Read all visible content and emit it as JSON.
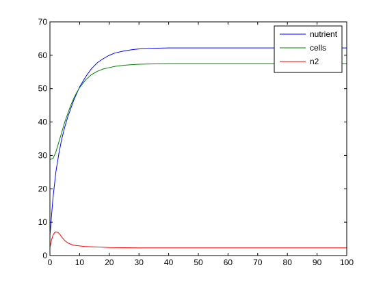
{
  "chart_data": {
    "type": "line",
    "title": "",
    "xlabel": "",
    "ylabel": "",
    "xlim": [
      0,
      100
    ],
    "ylim": [
      0,
      70
    ],
    "grid": false,
    "legend_position": "top-right",
    "x_ticks": [
      "0",
      "10",
      "20",
      "30",
      "40",
      "50",
      "60",
      "70",
      "80",
      "90",
      "100"
    ],
    "y_ticks": [
      "0",
      "10",
      "20",
      "30",
      "40",
      "50",
      "60",
      "70"
    ],
    "series": [
      {
        "name": "nutrient",
        "color": "#0000ff",
        "x": [
          0,
          1,
          2,
          3,
          4,
          5,
          6,
          7,
          8,
          9,
          10,
          12,
          14,
          16,
          18,
          20,
          22,
          25,
          28,
          30,
          35,
          40,
          45,
          50,
          60,
          70,
          80,
          90,
          100
        ],
        "y": [
          6,
          17,
          25,
          30.5,
          35,
          38.5,
          41.5,
          44,
          46.5,
          48.5,
          50.5,
          53.5,
          56,
          57.8,
          59,
          60,
          60.7,
          61.3,
          61.7,
          61.9,
          62.1,
          62.2,
          62.2,
          62.2,
          62.2,
          62.2,
          62.2,
          62.2,
          62.2
        ]
      },
      {
        "name": "cells",
        "color": "#008000",
        "x": [
          0,
          1,
          2,
          3,
          4,
          5,
          6,
          7,
          8,
          9,
          10,
          12,
          14,
          16,
          18,
          20,
          22,
          25,
          28,
          30,
          35,
          40,
          45,
          50,
          60,
          70,
          80,
          90,
          100
        ],
        "y": [
          28.8,
          29,
          31,
          34,
          37,
          40,
          42.5,
          45,
          47,
          48.8,
          50.3,
          52.6,
          54.2,
          55.2,
          55.9,
          56.3,
          56.7,
          57,
          57.2,
          57.3,
          57.4,
          57.5,
          57.5,
          57.5,
          57.5,
          57.5,
          57.5,
          57.5,
          57.5
        ]
      },
      {
        "name": "n2",
        "color": "#ff0000",
        "x": [
          0,
          0.5,
          1,
          1.5,
          2,
          2.5,
          3,
          3.5,
          4,
          5,
          6,
          7,
          8,
          10,
          12,
          15,
          18,
          20,
          25,
          30,
          40,
          50,
          60,
          70,
          80,
          90,
          100
        ],
        "y": [
          2.5,
          4.5,
          6,
          6.8,
          7.1,
          7.0,
          6.7,
          6.2,
          5.5,
          4.5,
          3.8,
          3.4,
          3.1,
          2.9,
          2.7,
          2.6,
          2.5,
          2.4,
          2.35,
          2.3,
          2.3,
          2.3,
          2.3,
          2.3,
          2.3,
          2.3,
          2.3
        ]
      }
    ]
  }
}
